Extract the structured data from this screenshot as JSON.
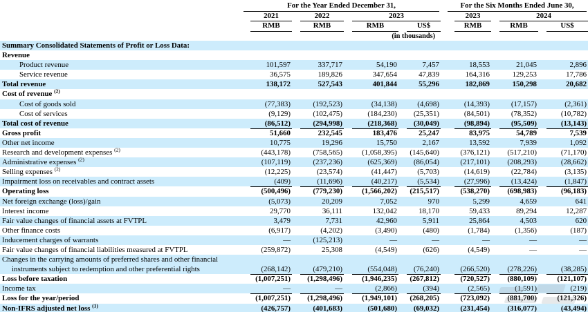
{
  "header": {
    "group1": "For the Year Ended December 31,",
    "group2": "For the Six Months Ended June 30,",
    "years_group1": [
      "2021",
      "2022",
      "2023"
    ],
    "years_group2": [
      "2023",
      "2024"
    ],
    "currencies_group1": [
      "RMB",
      "RMB",
      "RMB",
      "US$"
    ],
    "currencies_group2": [
      "RMB",
      "RMB",
      "US$"
    ],
    "units_note": "(in thousands)"
  },
  "colors": {
    "row_shade": "#cdecfc",
    "text": "#000000",
    "rule": "#000000"
  },
  "table": {
    "rows": [
      {
        "label": "Summary Consolidated Statements of Profit or Loss Data:",
        "bold": true,
        "shaded": true,
        "values": null
      },
      {
        "label": "Revenue",
        "bold": true,
        "shaded": false,
        "values": null
      },
      {
        "label": "Product revenue",
        "indent": true,
        "shaded": true,
        "values": [
          "101,597",
          "337,717",
          "54,190",
          "7,457",
          "18,553",
          "21,045",
          "2,896"
        ]
      },
      {
        "label": "Service revenue",
        "indent": true,
        "shaded": false,
        "ul": "s",
        "values": [
          "36,575",
          "189,826",
          "347,654",
          "47,839",
          "164,316",
          "129,253",
          "17,786"
        ]
      },
      {
        "label": "Total revenue",
        "bold": true,
        "shaded": true,
        "values": [
          "138,172",
          "527,543",
          "401,844",
          "55,296",
          "182,869",
          "150,298",
          "20,682"
        ]
      },
      {
        "label": "Cost of revenue",
        "sup": "(2)",
        "bold": true,
        "shaded": false,
        "values": null
      },
      {
        "label": "Cost of goods sold",
        "indent": true,
        "shaded": true,
        "values": [
          "(77,383)",
          "(192,523)",
          "(34,138)",
          "(4,698)",
          "(14,393)",
          "(17,157)",
          "(2,361)"
        ]
      },
      {
        "label": "Cost of services",
        "indent": true,
        "shaded": false,
        "ul": "s",
        "values": [
          "(9,129)",
          "(102,475)",
          "(184,230)",
          "(25,351)",
          "(84,501)",
          "(78,352)",
          "(10,782)"
        ]
      },
      {
        "label": "Total cost of revenue",
        "bold": true,
        "shaded": true,
        "ul": "s",
        "values": [
          "(86,512)",
          "(294,998)",
          "(218,368)",
          "(30,049)",
          "(98,894)",
          "(95,509)",
          "(13,143)"
        ]
      },
      {
        "label": "Gross profit",
        "bold": true,
        "shaded": false,
        "values": [
          "51,660",
          "232,545",
          "183,476",
          "25,247",
          "83,975",
          "54,789",
          "7,539"
        ]
      },
      {
        "label": "Other net income",
        "shaded": true,
        "values": [
          "10,775",
          "19,296",
          "15,750",
          "2,167",
          "13,592",
          "7,939",
          "1,092"
        ]
      },
      {
        "label": "Research and development expenses",
        "sup": "(2)",
        "shaded": false,
        "values": [
          "(443,178)",
          "(758,565)",
          "(1,058,395)",
          "(145,640)",
          "(376,121)",
          "(517,210)",
          "(71,170)"
        ]
      },
      {
        "label": "Administrative expenses",
        "sup": "(2)",
        "shaded": true,
        "values": [
          "(107,119)",
          "(237,236)",
          "(625,369)",
          "(86,054)",
          "(217,101)",
          "(208,293)",
          "(28,662)"
        ]
      },
      {
        "label": "Selling expenses",
        "sup": "(2)",
        "shaded": false,
        "values": [
          "(12,225)",
          "(23,574)",
          "(41,447)",
          "(5,703)",
          "(14,619)",
          "(22,784)",
          "(3,135)"
        ]
      },
      {
        "label": "Impairment loss on receivables and contract assets",
        "shaded": true,
        "ul": "s",
        "values": [
          "(409)",
          "(11,696)",
          "(40,217)",
          "(5,534)",
          "(27,996)",
          "(13,424)",
          "(1,847)"
        ]
      },
      {
        "label": "Operating loss",
        "bold": true,
        "shaded": false,
        "values": [
          "(500,496)",
          "(779,230)",
          "(1,566,202)",
          "(215,517)",
          "(538,270)",
          "(698,983)",
          "(96,183)"
        ]
      },
      {
        "label": "Net foreign exchange (loss)/gain",
        "shaded": true,
        "values": [
          "(5,073)",
          "20,209",
          "7,052",
          "970",
          "5,299",
          "4,659",
          "641"
        ]
      },
      {
        "label": "Interest income",
        "shaded": false,
        "values": [
          "29,770",
          "36,111",
          "132,042",
          "18,170",
          "59,433",
          "89,294",
          "12,287"
        ]
      },
      {
        "label": "Fair value changes of financial assets at FVTPL",
        "shaded": true,
        "values": [
          "3,479",
          "7,731",
          "42,960",
          "5,911",
          "25,864",
          "4,503",
          "620"
        ]
      },
      {
        "label": "Other finance costs",
        "shaded": false,
        "values": [
          "(6,917)",
          "(4,202)",
          "(3,490)",
          "(480)",
          "(1,784)",
          "(1,356)",
          "(187)"
        ]
      },
      {
        "label": "Inducement charges of warrants",
        "shaded": true,
        "values": [
          "—",
          "(125,213)",
          "—",
          "—",
          "—",
          "—",
          "—"
        ]
      },
      {
        "label": "Fair value changes of financial liabilities measured at FVTPL",
        "shaded": false,
        "values": [
          "(259,872)",
          "25,308",
          "(4,549)",
          "(626)",
          "(4,549)",
          "—",
          "—"
        ]
      },
      {
        "label": "Changes in the carrying amounts of preferred shares and other financial",
        "label2": "instruments subject to redemption and other preferential rights",
        "shaded": true,
        "ul": "s",
        "values": [
          "(268,142)",
          "(479,210)",
          "(554,048)",
          "(76,240)",
          "(266,520)",
          "(278,226)",
          "(38,285)"
        ]
      },
      {
        "label": "Loss before taxation",
        "bold": true,
        "shaded": false,
        "values": [
          "(1,007,251)",
          "(1,298,496)",
          "(1,946,235)",
          "(267,812)",
          "(720,527)",
          "(880,109)",
          "(121,107)"
        ]
      },
      {
        "label": "Income tax",
        "shaded": true,
        "ul": "s",
        "values": [
          "—",
          "—",
          "(2,866)",
          "(394)",
          "(2,565)",
          "(1,591)",
          "(219)"
        ]
      },
      {
        "label": "Loss for the year/period",
        "bold": true,
        "shaded": false,
        "ul": "d",
        "values": [
          "(1,007,251)",
          "(1,298,496)",
          "(1,949,101)",
          "(268,205)",
          "(723,092)",
          "(881,700)",
          "(121,326)"
        ]
      },
      {
        "label": "Non-IFRS adjusted net loss",
        "sup": "(1)",
        "bold": true,
        "shaded": true,
        "values": [
          "(426,757)",
          "(401,683)",
          "(501,680)",
          "(69,032)",
          "(231,454)",
          "(316,077)",
          "(43,494)"
        ]
      }
    ]
  }
}
